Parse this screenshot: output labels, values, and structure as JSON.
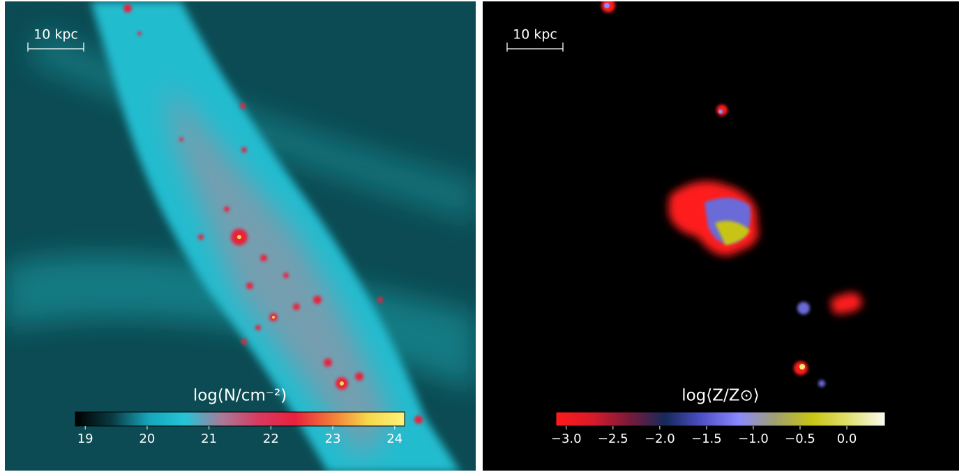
{
  "chart_data": [
    {
      "type": "image-map",
      "scale_label": "10 kpc",
      "colorbar_label": "log(N/cm⁻²)",
      "colormap": [
        "#000000",
        "#0a3a42",
        "#16a6bb",
        "#24c4d6",
        "#a87a98",
        "#d83a62",
        "#e8203e",
        "#f27a3a",
        "#f6d84a",
        "#fff27a"
      ],
      "clim": [
        18.84,
        24.16
      ],
      "cticks": [
        19,
        20,
        21,
        22,
        23,
        24
      ]
    },
    {
      "type": "image-map",
      "scale_label": "10 kpc",
      "colorbar_label": "log⟨Z/Z⊙⟩",
      "colormap": [
        "#ff1a1a",
        "#d81a2a",
        "#7a1a3a",
        "#142a5a",
        "#5050c8",
        "#8a8aff",
        "#a0a070",
        "#c8c414",
        "#e0e070",
        "#fafaf0"
      ],
      "clim": [
        -3.11,
        0.41
      ],
      "cticks": [
        {
          "value": -3,
          "label": "−3.0"
        },
        {
          "value": -2.5,
          "label": "−2.5"
        },
        {
          "value": -2,
          "label": "−2.0"
        },
        {
          "value": -1.5,
          "label": "−1.5"
        },
        {
          "value": -1,
          "label": "−1.0"
        },
        {
          "value": -0.5,
          "label": "−0.5"
        },
        {
          "value": 0,
          "label": "0.0"
        }
      ]
    }
  ]
}
